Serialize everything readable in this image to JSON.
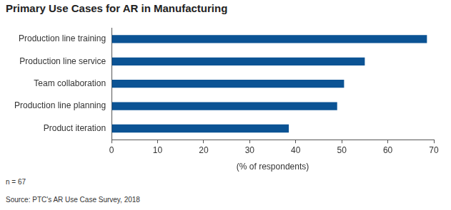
{
  "chart_data": {
    "type": "bar",
    "orientation": "horizontal",
    "title": "Primary Use Cases for AR in Manufacturing",
    "x_label": "(% of respondents)",
    "categories": [
      "Production line training",
      "Production line service",
      "Team collaboration",
      "Production line planning",
      "Product iteration"
    ],
    "values": [
      68.5,
      55,
      50.5,
      49,
      38.5
    ],
    "color": "#0b5394",
    "xlim": [
      0,
      70
    ],
    "xticks": [
      0,
      10,
      20,
      30,
      40,
      50,
      60,
      70
    ],
    "grid": false,
    "notes": [
      "n = 67",
      "Source: PTC's AR Use Case Survey, 2018"
    ]
  }
}
